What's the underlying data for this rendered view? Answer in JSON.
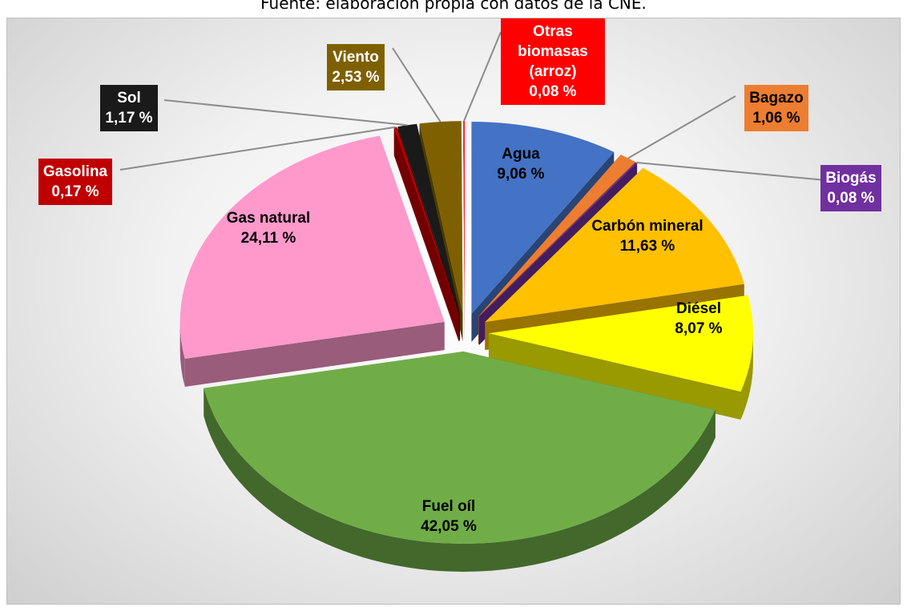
{
  "chart_data": {
    "type": "pie",
    "source": "Fuente: elaboración propia con datos de la CNE.",
    "categories": [
      "Agua",
      "Bagazo",
      "Biogás",
      "Carbón mineral",
      "Diésel",
      "Fuel oíl",
      "Gas natural",
      "Gasolina",
      "Sol",
      "Viento",
      "Otras biomasas (arroz)"
    ],
    "values": [
      9.06,
      1.06,
      0.08,
      11.63,
      8.07,
      42.05,
      24.11,
      0.17,
      1.17,
      2.53,
      0.08
    ],
    "value_labels": [
      "9,06 %",
      "1,06 %",
      "0,08 %",
      "11,63 %",
      "8,07 %",
      "42,05 %",
      "24,11 %",
      "0,17 %",
      "1,17 %",
      "2,53 %",
      "0,08 %"
    ],
    "colors": [
      "#4472c4",
      "#ed7d31",
      "#7030a0",
      "#ffc000",
      "#ffff00",
      "#70ad47",
      "#ff99cc",
      "#c00000",
      "#1a1a1a",
      "#7f6000",
      "#ff0000"
    ]
  }
}
